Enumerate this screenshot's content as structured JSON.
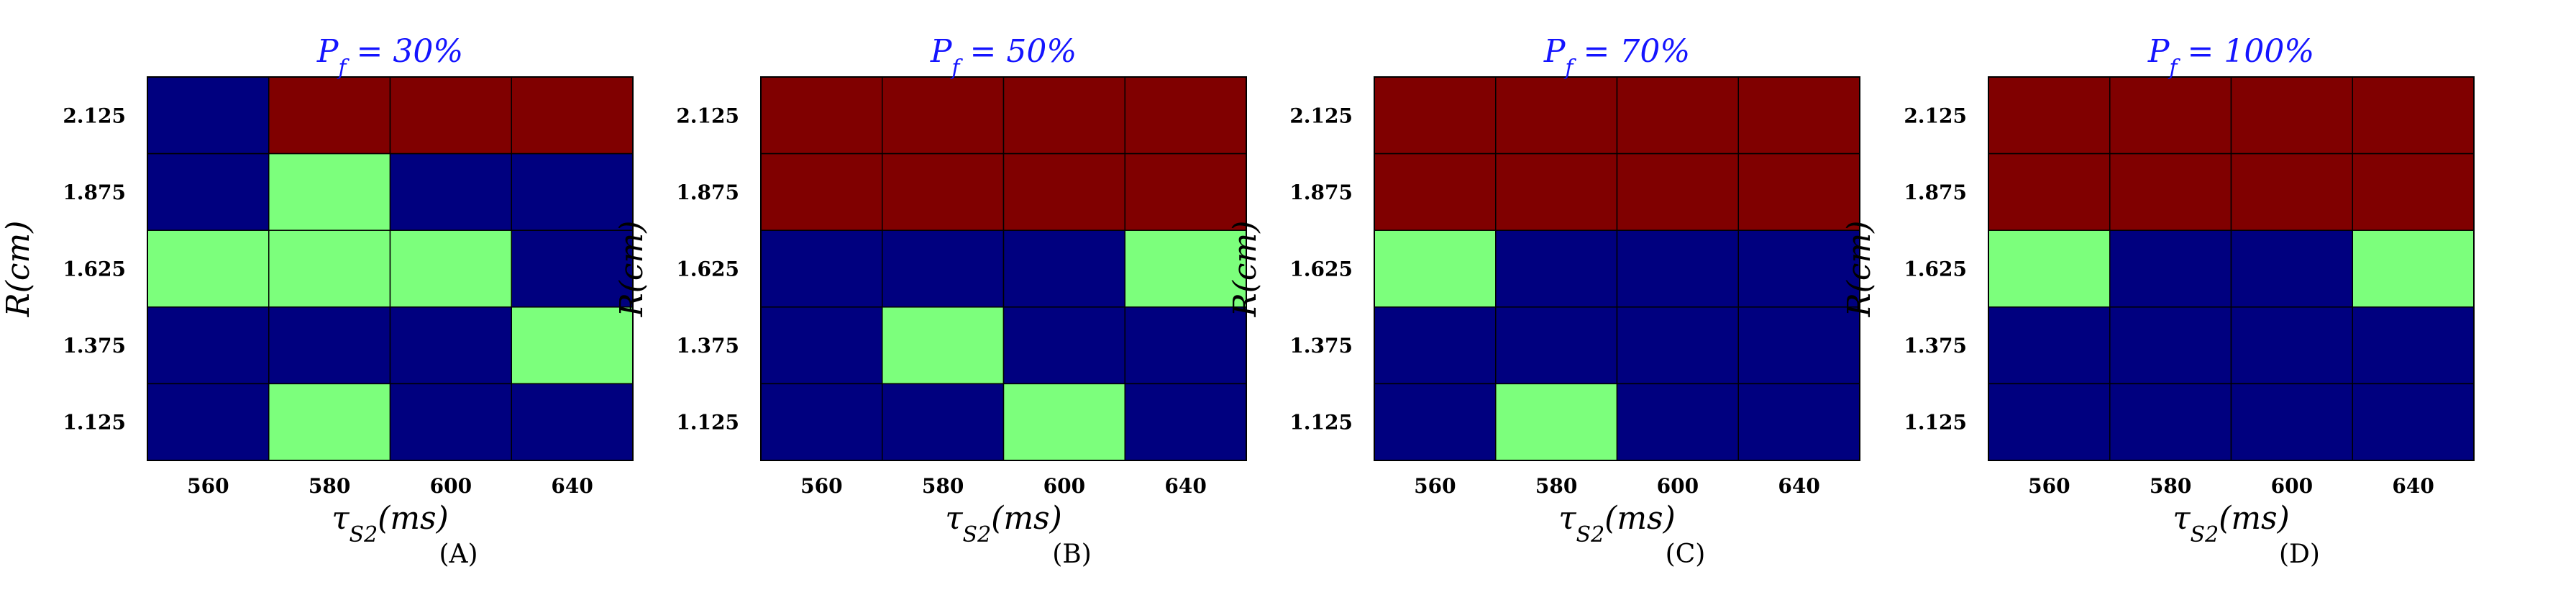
{
  "chart_data": [
    {
      "type": "heatmap",
      "title": "P_f = 30%",
      "title_main": "P",
      "title_sub": "f",
      "title_rest": " = 30%",
      "xlabel": "τS2(ms)",
      "xlabel_main": "τ",
      "xlabel_sub": "S2",
      "xlabel_rest": "(ms)",
      "ylabel": "R(cm)",
      "x_categories": [
        "560",
        "580",
        "600",
        "640"
      ],
      "y_categories": [
        "2.125",
        "1.875",
        "1.625",
        "1.375",
        "1.125"
      ],
      "grid_levels": [
        [
          0,
          2,
          2,
          2
        ],
        [
          0,
          1,
          0,
          0
        ],
        [
          1,
          1,
          1,
          0
        ],
        [
          0,
          0,
          0,
          1
        ],
        [
          0,
          1,
          0,
          0
        ]
      ],
      "panel_label": "(A)"
    },
    {
      "type": "heatmap",
      "title": "P_f = 50%",
      "title_main": "P",
      "title_sub": "f",
      "title_rest": " = 50%",
      "xlabel": "τS2(ms)",
      "xlabel_main": "τ",
      "xlabel_sub": "S2",
      "xlabel_rest": "(ms)",
      "ylabel": "R(cm)",
      "x_categories": [
        "560",
        "580",
        "600",
        "640"
      ],
      "y_categories": [
        "2.125",
        "1.875",
        "1.625",
        "1.375",
        "1.125"
      ],
      "grid_levels": [
        [
          2,
          2,
          2,
          2
        ],
        [
          2,
          2,
          2,
          2
        ],
        [
          0,
          0,
          0,
          1
        ],
        [
          0,
          1,
          0,
          0
        ],
        [
          0,
          0,
          1,
          0
        ]
      ],
      "panel_label": "(B)"
    },
    {
      "type": "heatmap",
      "title": "P_f = 70%",
      "title_main": "P",
      "title_sub": "f",
      "title_rest": " = 70%",
      "xlabel": "τS2(ms)",
      "xlabel_main": "τ",
      "xlabel_sub": "S2",
      "xlabel_rest": "(ms)",
      "ylabel": "R(cm)",
      "x_categories": [
        "560",
        "580",
        "600",
        "640"
      ],
      "y_categories": [
        "2.125",
        "1.875",
        "1.625",
        "1.375",
        "1.125"
      ],
      "grid_levels": [
        [
          2,
          2,
          2,
          2
        ],
        [
          2,
          2,
          2,
          2
        ],
        [
          1,
          0,
          0,
          0
        ],
        [
          0,
          0,
          0,
          0
        ],
        [
          0,
          1,
          0,
          0
        ]
      ],
      "panel_label": "(C)"
    },
    {
      "type": "heatmap",
      "title": "P_f = 100%",
      "title_main": "P",
      "title_sub": "f",
      "title_rest": " = 100%",
      "xlabel": "τS2(ms)",
      "xlabel_main": "τ",
      "xlabel_sub": "S2",
      "xlabel_rest": "(ms)",
      "ylabel": "R(cm)",
      "x_categories": [
        "560",
        "580",
        "600",
        "640"
      ],
      "y_categories": [
        "2.125",
        "1.875",
        "1.625",
        "1.375",
        "1.125"
      ],
      "grid_levels": [
        [
          2,
          2,
          2,
          2
        ],
        [
          2,
          2,
          2,
          2
        ],
        [
          1,
          0,
          0,
          1
        ],
        [
          0,
          0,
          0,
          0
        ],
        [
          0,
          0,
          0,
          0
        ]
      ],
      "panel_label": "(D)"
    }
  ],
  "colors": {
    "level_0": "#00007f",
    "level_1": "#7cff7c",
    "level_2": "#800000",
    "title": "#1414ff",
    "grid_line": "#000000"
  }
}
